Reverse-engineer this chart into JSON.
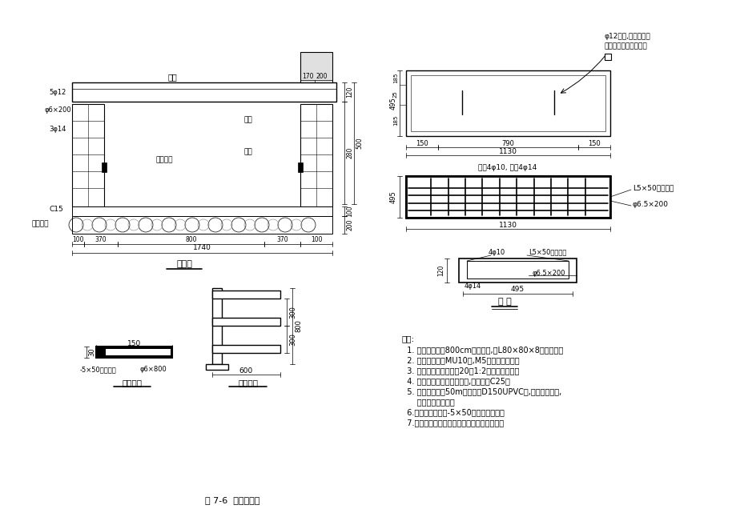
{
  "title": "图 7-6  电缆沟详图",
  "bg_color": "#ffffff",
  "line_color": "#000000",
  "fig_width": 9.2,
  "fig_height": 6.51,
  "notes_header": "说明:",
  "notes": [
    "  1. 电缆支架每隔800cm设置一个,用L80×80×8角钢制作。",
    "  2. 砌砖电缆沟用MU10砖,M5水泥砂浆实砌。",
    "  3. 沟体内、外壁粉刷为20厚1:2防水砂浆抹面。",
    "  4. 混凝土强度等级除注明外,其余均为C25。",
    "  5. 沟体底部每隔50m放置一根D150UPVC管,接至邻近窨井,",
    "      作沟内排水之用。",
    "  6.沟内所有支架用-5×50接地扁铁连接。",
    "  7.电缆沟顶面标高应与盛梅路路面标高持平。"
  ],
  "section_labels": {
    "gaiban": "盖板",
    "jiedifangba": "接地扁铁",
    "tongzuo": "同左",
    "jiediangba_inner": "接地扁铁",
    "pianshidiceng": "片石垫层",
    "c15": "C15",
    "mianbao": "剖面图",
    "dianlan_zhijia": "电缆支架",
    "gaiban_label": "盖 板"
  }
}
